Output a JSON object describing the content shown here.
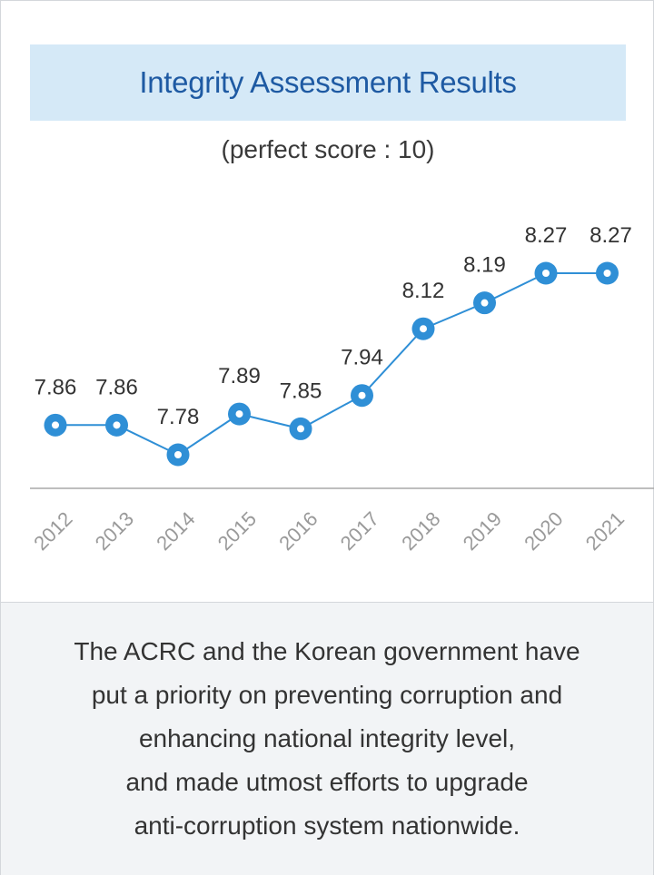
{
  "header": {
    "title": "Integrity Assessment Results",
    "subtitle": "(perfect score : 10)"
  },
  "chart_data": {
    "type": "line",
    "title": "Integrity Assessment Results",
    "subtitle": "(perfect score : 10)",
    "categories": [
      "2012",
      "2013",
      "2014",
      "2015",
      "2016",
      "2017",
      "2018",
      "2019",
      "2020",
      "2021"
    ],
    "values": [
      7.86,
      7.86,
      7.78,
      7.89,
      7.85,
      7.94,
      8.12,
      8.19,
      8.27,
      8.27
    ],
    "value_labels": [
      "7.86",
      "7.86",
      "7.78",
      "7.89",
      "7.85",
      "7.94",
      "8.12",
      "8.19",
      "8.27",
      "8.27"
    ],
    "xlabel": "",
    "ylabel": "",
    "grid": false,
    "legend": "none",
    "colors": {
      "line": "#2f8fd6",
      "marker": "#2f8fd6",
      "label": "#333333",
      "tick": "#9a9a9a",
      "axis": "#a8a8a8"
    }
  },
  "footer": {
    "lines": [
      "The ACRC and the Korean government have",
      "put a priority on preventing corruption and",
      "enhancing national integrity level,",
      "and made utmost efforts to upgrade",
      "anti-corruption system nationwide."
    ]
  }
}
